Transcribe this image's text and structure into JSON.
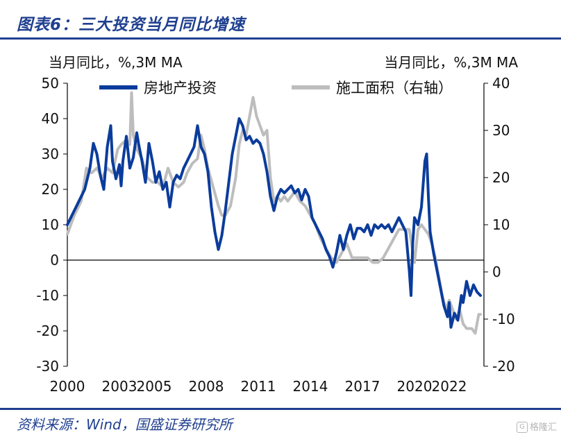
{
  "figure": {
    "title": "图表6：三大投资当月同比增速",
    "source": "资料来源：Wind，国盛证券研究所",
    "watermark": "格隆汇"
  },
  "colors": {
    "series_primary": "#0b3c9c",
    "series_secondary": "#bdbdbd",
    "brand": "#1f3f8f"
  },
  "chart_data": {
    "type": "line",
    "left_axis_label": "当月同比，%,3M MA",
    "right_axis_label": "当月同比，%,3M MA",
    "ylim_left": [
      -30,
      50
    ],
    "ylim_right": [
      -20,
      40
    ],
    "yticks_left": [
      "50",
      "40",
      "30",
      "20",
      "10",
      "0",
      "-10",
      "-20",
      "-30"
    ],
    "yticks_right": [
      "40",
      "30",
      "20",
      "10",
      "0",
      "-10",
      "-20"
    ],
    "xticks": [
      "2000",
      "2003",
      "2005",
      "2008",
      "2011",
      "2014",
      "2017",
      "2020",
      "2022"
    ],
    "xticks_pos": [
      2000,
      2003,
      2005,
      2008,
      2011,
      2014,
      2017,
      2020,
      2022
    ],
    "xlim": [
      2000,
      2024
    ],
    "legend_position": "top",
    "grid": false,
    "series": [
      {
        "name": "房地产投资",
        "axis": "left",
        "color": "#0b3c9c",
        "points": [
          [
            2000.0,
            10
          ],
          [
            2000.5,
            15
          ],
          [
            2001.0,
            20
          ],
          [
            2001.3,
            26
          ],
          [
            2001.5,
            33
          ],
          [
            2001.7,
            30
          ],
          [
            2001.9,
            24
          ],
          [
            2002.1,
            20
          ],
          [
            2002.3,
            32
          ],
          [
            2002.5,
            38
          ],
          [
            2002.6,
            28
          ],
          [
            2002.8,
            23
          ],
          [
            2003.0,
            27
          ],
          [
            2003.1,
            21
          ],
          [
            2003.2,
            28
          ],
          [
            2003.4,
            35
          ],
          [
            2003.6,
            26
          ],
          [
            2003.8,
            29
          ],
          [
            2004.0,
            36
          ],
          [
            2004.1,
            33
          ],
          [
            2004.3,
            28
          ],
          [
            2004.5,
            22
          ],
          [
            2004.7,
            33
          ],
          [
            2004.9,
            28
          ],
          [
            2005.1,
            22
          ],
          [
            2005.3,
            25
          ],
          [
            2005.5,
            20
          ],
          [
            2005.7,
            22
          ],
          [
            2005.9,
            15
          ],
          [
            2006.1,
            22
          ],
          [
            2006.3,
            24
          ],
          [
            2006.5,
            23
          ],
          [
            2006.7,
            26
          ],
          [
            2006.9,
            28
          ],
          [
            2007.1,
            30
          ],
          [
            2007.3,
            32
          ],
          [
            2007.5,
            38
          ],
          [
            2007.7,
            32
          ],
          [
            2007.9,
            30
          ],
          [
            2008.1,
            25
          ],
          [
            2008.3,
            15
          ],
          [
            2008.5,
            8
          ],
          [
            2008.7,
            3
          ],
          [
            2008.9,
            7
          ],
          [
            2009.1,
            14
          ],
          [
            2009.3,
            22
          ],
          [
            2009.5,
            30
          ],
          [
            2009.7,
            35
          ],
          [
            2009.9,
            40
          ],
          [
            2010.1,
            38
          ],
          [
            2010.3,
            34
          ],
          [
            2010.5,
            35
          ],
          [
            2010.7,
            33
          ],
          [
            2010.9,
            34
          ],
          [
            2011.1,
            33
          ],
          [
            2011.3,
            30
          ],
          [
            2011.5,
            25
          ],
          [
            2011.7,
            18
          ],
          [
            2011.9,
            14
          ],
          [
            2012.1,
            18
          ],
          [
            2012.3,
            20
          ],
          [
            2012.5,
            19
          ],
          [
            2012.7,
            20
          ],
          [
            2012.9,
            21
          ],
          [
            2013.1,
            19
          ],
          [
            2013.3,
            20
          ],
          [
            2013.5,
            17
          ],
          [
            2013.7,
            20
          ],
          [
            2013.9,
            18
          ],
          [
            2014.1,
            12
          ],
          [
            2014.3,
            10
          ],
          [
            2014.5,
            8
          ],
          [
            2014.7,
            6
          ],
          [
            2014.9,
            3
          ],
          [
            2015.1,
            1
          ],
          [
            2015.3,
            -2
          ],
          [
            2015.5,
            2
          ],
          [
            2015.7,
            7
          ],
          [
            2015.9,
            3
          ],
          [
            2016.1,
            7
          ],
          [
            2016.3,
            10
          ],
          [
            2016.5,
            6
          ],
          [
            2016.7,
            9
          ],
          [
            2016.9,
            9
          ],
          [
            2017.1,
            8
          ],
          [
            2017.3,
            10
          ],
          [
            2017.5,
            7
          ],
          [
            2017.7,
            10
          ],
          [
            2017.9,
            9
          ],
          [
            2018.1,
            10
          ],
          [
            2018.3,
            9
          ],
          [
            2018.5,
            10
          ],
          [
            2018.7,
            8
          ],
          [
            2018.9,
            10
          ],
          [
            2019.1,
            12
          ],
          [
            2019.3,
            10
          ],
          [
            2019.5,
            8
          ],
          [
            2019.7,
            -3
          ],
          [
            2019.8,
            -10
          ],
          [
            2019.9,
            5
          ],
          [
            2020.0,
            12
          ],
          [
            2020.2,
            10
          ],
          [
            2020.4,
            15
          ],
          [
            2020.6,
            28
          ],
          [
            2020.7,
            30
          ],
          [
            2020.8,
            18
          ],
          [
            2020.9,
            8
          ],
          [
            2021.1,
            2
          ],
          [
            2021.3,
            -3
          ],
          [
            2021.5,
            -8
          ],
          [
            2021.7,
            -13
          ],
          [
            2021.9,
            -16
          ],
          [
            2022.0,
            -12
          ],
          [
            2022.1,
            -19
          ],
          [
            2022.3,
            -15
          ],
          [
            2022.5,
            -17
          ],
          [
            2022.7,
            -10
          ],
          [
            2022.8,
            -12
          ],
          [
            2023.0,
            -6
          ],
          [
            2023.2,
            -10
          ],
          [
            2023.4,
            -7
          ],
          [
            2023.6,
            -9
          ],
          [
            2023.8,
            -10
          ]
        ]
      },
      {
        "name": "施工面积（右轴）",
        "axis": "right",
        "color": "#bdbdbd",
        "points": [
          [
            2000.0,
            8
          ],
          [
            2000.4,
            12
          ],
          [
            2000.8,
            15
          ],
          [
            2001.1,
            22
          ],
          [
            2001.4,
            21
          ],
          [
            2001.7,
            22
          ],
          [
            2002.0,
            20
          ],
          [
            2002.3,
            22
          ],
          [
            2002.6,
            21
          ],
          [
            2002.9,
            26
          ],
          [
            2003.1,
            27
          ],
          [
            2003.4,
            28
          ],
          [
            2003.6,
            27
          ],
          [
            2003.7,
            38
          ],
          [
            2003.8,
            29
          ],
          [
            2004.0,
            26
          ],
          [
            2004.3,
            24
          ],
          [
            2004.6,
            20
          ],
          [
            2004.9,
            19
          ],
          [
            2005.2,
            19
          ],
          [
            2005.5,
            18
          ],
          [
            2005.8,
            22
          ],
          [
            2006.1,
            19
          ],
          [
            2006.4,
            18
          ],
          [
            2006.7,
            19
          ],
          [
            2006.9,
            21
          ],
          [
            2007.2,
            23
          ],
          [
            2007.5,
            24
          ],
          [
            2007.7,
            29
          ],
          [
            2007.9,
            26
          ],
          [
            2008.1,
            22
          ],
          [
            2008.4,
            18
          ],
          [
            2008.7,
            14
          ],
          [
            2008.9,
            12
          ],
          [
            2009.1,
            12
          ],
          [
            2009.4,
            14
          ],
          [
            2009.7,
            20
          ],
          [
            2009.9,
            27
          ],
          [
            2010.1,
            30
          ],
          [
            2010.3,
            29
          ],
          [
            2010.5,
            33
          ],
          [
            2010.7,
            37
          ],
          [
            2010.9,
            33
          ],
          [
            2011.1,
            31
          ],
          [
            2011.3,
            29
          ],
          [
            2011.5,
            30
          ],
          [
            2011.7,
            20
          ],
          [
            2011.9,
            15
          ],
          [
            2012.1,
            16
          ],
          [
            2012.3,
            15
          ],
          [
            2012.5,
            16
          ],
          [
            2012.7,
            15
          ],
          [
            2012.9,
            16
          ],
          [
            2013.1,
            17
          ],
          [
            2013.4,
            15
          ],
          [
            2013.7,
            14
          ],
          [
            2014.0,
            12
          ],
          [
            2014.3,
            10
          ],
          [
            2014.6,
            7
          ],
          [
            2014.9,
            5
          ],
          [
            2015.2,
            3
          ],
          [
            2015.5,
            2
          ],
          [
            2015.8,
            4
          ],
          [
            2016.1,
            6
          ],
          [
            2016.4,
            3
          ],
          [
            2016.7,
            3
          ],
          [
            2017.0,
            3
          ],
          [
            2017.3,
            3
          ],
          [
            2017.6,
            2
          ],
          [
            2017.9,
            2
          ],
          [
            2018.2,
            3
          ],
          [
            2018.5,
            5
          ],
          [
            2018.8,
            7
          ],
          [
            2019.1,
            9
          ],
          [
            2019.4,
            9
          ],
          [
            2019.7,
            9
          ],
          [
            2020.0,
            2
          ],
          [
            2020.2,
            9
          ],
          [
            2020.4,
            10
          ],
          [
            2020.6,
            9
          ],
          [
            2020.8,
            8
          ],
          [
            2021.0,
            6
          ],
          [
            2021.2,
            3
          ],
          [
            2021.4,
            -1
          ],
          [
            2021.6,
            -5
          ],
          [
            2021.8,
            -8
          ],
          [
            2022.0,
            -6
          ],
          [
            2022.2,
            -8
          ],
          [
            2022.4,
            -10
          ],
          [
            2022.6,
            -8
          ],
          [
            2022.8,
            -11
          ],
          [
            2023.0,
            -12
          ],
          [
            2023.3,
            -12
          ],
          [
            2023.5,
            -13
          ],
          [
            2023.7,
            -9
          ],
          [
            2023.8,
            -9
          ]
        ]
      }
    ]
  }
}
